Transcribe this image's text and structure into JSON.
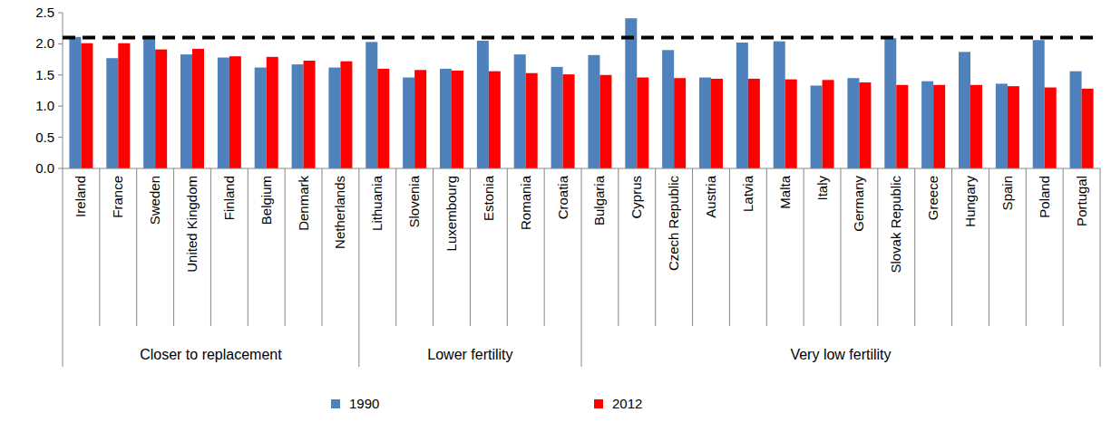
{
  "chart_data": {
    "type": "bar",
    "categories": [
      "Ireland",
      "France",
      "Sweden",
      "United Kingdom",
      "Finland",
      "Belgium",
      "Denmark",
      "Netherlands",
      "Lithuania",
      "Slovenia",
      "Luxembourg",
      "Estonia",
      "Romania",
      "Croatia",
      "Bulgaria",
      "Cyprus",
      "Czech Republic",
      "Austria",
      "Latvia",
      "Malta",
      "Italy",
      "Germany",
      "Slovak Republic",
      "Greece",
      "Hungary",
      "Spain",
      "Poland",
      "Portugal"
    ],
    "series": [
      {
        "name": "1990",
        "color": "#4f81bd",
        "values": [
          2.11,
          1.77,
          2.13,
          1.83,
          1.78,
          1.62,
          1.67,
          1.62,
          2.03,
          1.46,
          1.6,
          2.05,
          1.83,
          1.63,
          1.82,
          2.41,
          1.9,
          1.46,
          2.02,
          2.04,
          1.33,
          1.45,
          2.09,
          1.4,
          1.87,
          1.36,
          2.06,
          1.56
        ]
      },
      {
        "name": "2012",
        "color": "#ff0000",
        "values": [
          2.01,
          2.01,
          1.91,
          1.92,
          1.8,
          1.79,
          1.73,
          1.72,
          1.6,
          1.58,
          1.57,
          1.56,
          1.53,
          1.51,
          1.5,
          1.46,
          1.45,
          1.44,
          1.44,
          1.43,
          1.42,
          1.38,
          1.34,
          1.34,
          1.34,
          1.32,
          1.3,
          1.28
        ]
      }
    ],
    "group_labels": [
      "Closer to replacement",
      "Lower fertility",
      "Very low fertility"
    ],
    "group_sizes": [
      8,
      6,
      14
    ],
    "reference_line": 2.1,
    "ylim": [
      0,
      2.5
    ],
    "yticks": [
      {
        "value": 0,
        "label": "0.0"
      },
      0.5,
      {
        "value": 1,
        "label": "1.0"
      },
      1.5,
      {
        "value": 2,
        "label": "2.0"
      },
      2.5
    ],
    "legend": "bottom",
    "grid": false
  }
}
